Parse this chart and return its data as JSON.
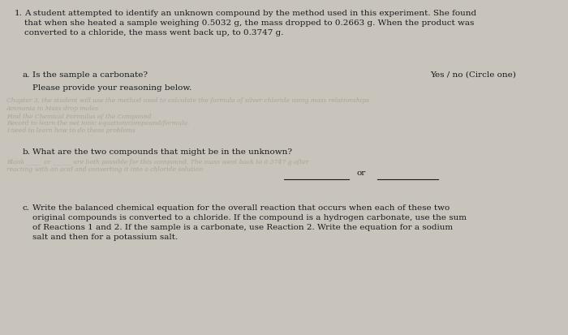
{
  "bg_color": "#c8c4bc",
  "paper_color": "#eae7e0",
  "title_num": "1.",
  "intro_line1": "A student attempted to identify an unknown compound by the method used in this experiment. She found",
  "intro_line2": "that when she heated a sample weighing 0.5032 g, the mass dropped to 0.2663 g. When the product was",
  "intro_line3": "converted to a chloride, the mass went back up, to 0.3747 g.",
  "part_a_label": "a.",
  "part_a_text": "Is the sample a carbonate?",
  "part_a_right": "Yes / no (Circle one)",
  "part_a_sub": "Please provide your reasoning below.",
  "bleed_lines": [
    "Chapter 3, the student will use the method used to calculate the formula of silver chloride using mass relationships",
    "Ammonia in Mass drop moles",
    "Find the Chemical Formulas of the Compound",
    "Record to learn the net ionic equation/compound/formula.",
    "I need to learn how to do these problems"
  ],
  "part_b_label": "b.",
  "part_b_text": "What are the two compounds that might be in the unknown?",
  "bleed_b_lines": [
    "Blank _____ or ______ are both possible for this compound. The mass went back to 0.3747 g after",
    "reacting with an acid and converting it into a chloride solution"
  ],
  "part_b_or": "or",
  "part_c_label": "c.",
  "part_c_line1": "Write the balanced chemical equation for the overall reaction that occurs when each of these two",
  "part_c_line2": "original compounds is converted to a chloride. If the compound is a hydrogen carbonate, use the sum",
  "part_c_line3": "of Reactions 1 and 2. If the sample is a carbonate, use Reaction 2. Write the equation for a sodium",
  "part_c_line4": "salt and then for a potassium salt.",
  "font_size": 7.5,
  "bleed_font_size": 5.5,
  "text_color": "#1a1a1a",
  "bleed_color": "#a09888"
}
